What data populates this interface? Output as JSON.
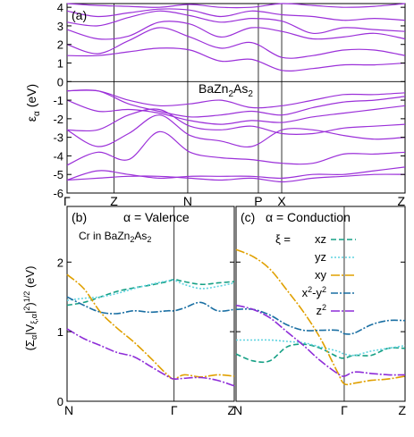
{
  "chart_data": [
    {
      "panel": "(a)",
      "type": "line",
      "annotation": "BaZn2As2",
      "ylabel": "εα (eV)",
      "ylim": [
        -6,
        4.2
      ],
      "yticks": [
        -6,
        -5,
        -4,
        -3,
        -2,
        -1,
        0,
        1,
        2,
        3,
        4
      ],
      "xticks": [
        "Γ",
        "Z",
        "N",
        "P",
        "X",
        "Z"
      ],
      "xtick_pos": [
        0,
        0.139,
        0.357,
        0.566,
        0.635,
        1.0
      ],
      "color": "#9b30d9",
      "bands": [
        [
          4.2,
          4.1,
          4.05,
          4.0,
          4.15,
          4.0,
          4.0,
          4.2,
          4.1,
          4.0,
          4.05,
          4.2
        ],
        [
          3.8,
          3.5,
          3.7,
          3.9,
          3.85,
          3.5,
          3.8,
          3.6,
          3.5,
          3.3,
          3.4,
          3.3
        ],
        [
          3.2,
          3.0,
          3.45,
          3.8,
          3.55,
          3.2,
          3.4,
          3.25,
          2.6,
          2.9,
          2.8,
          2.7
        ],
        [
          2.8,
          2.3,
          2.45,
          3.2,
          3.1,
          2.4,
          2.9,
          2.7,
          2.3,
          2.4,
          2.6,
          2.3
        ],
        [
          2.0,
          1.5,
          2.2,
          2.9,
          2.4,
          1.8,
          2.1,
          1.3,
          1.4,
          1.7,
          1.7,
          1.4
        ],
        [
          1.4,
          1.4,
          1.6,
          1.8,
          1.7,
          1.1,
          1.2,
          0.6,
          0.7,
          0.9,
          0.9,
          1.0
        ],
        [
          -0.5,
          -0.5,
          -1.0,
          -1.3,
          -1.2,
          -1.0,
          -1.4,
          -1.3,
          -1.0,
          -0.7,
          -0.7,
          -0.6
        ],
        [
          -0.5,
          -0.5,
          -1.2,
          -1.6,
          -1.9,
          -1.8,
          -1.6,
          -1.8,
          -1.4,
          -1.1,
          -1.0,
          -0.8
        ],
        [
          -1.0,
          -1.6,
          -1.5,
          -1.7,
          -2.1,
          -2.3,
          -2.1,
          -2.2,
          -1.9,
          -1.7,
          -1.5,
          -1.3
        ],
        [
          -2.6,
          -2.6,
          -1.8,
          -1.5,
          -2.4,
          -2.6,
          -2.4,
          -2.8,
          -2.8,
          -2.5,
          -2.4,
          -2.3
        ],
        [
          -2.6,
          -3.5,
          -2.8,
          -1.8,
          -2.9,
          -3.2,
          -3.5,
          -2.6,
          -2.6,
          -2.9,
          -3.1,
          -3.0
        ],
        [
          -4.5,
          -3.8,
          -4.2,
          -2.7,
          -3.8,
          -4.1,
          -4.2,
          -4.4,
          -4.4,
          -3.9,
          -3.9,
          -3.8
        ],
        [
          -5.3,
          -4.8,
          -5.0,
          -5.2,
          -5.1,
          -5.1,
          -5.1,
          -5.2,
          -5.0,
          -5.0,
          -4.8,
          -4.6
        ],
        [
          -5.3,
          -5.2,
          -5.1,
          -5.1,
          -5.2,
          -5.3,
          -5.2,
          -5.4,
          -5.2,
          -5.1,
          -5.0,
          -5.0
        ]
      ]
    },
    {
      "panel": "(b)",
      "type": "line",
      "title": "α = Valence",
      "annotation": "Cr in BaZn2As2",
      "ylabel": "(Σα|Vξ,α|2)1/2 (eV)",
      "ylim": [
        0,
        2.8
      ],
      "yticks": [
        0,
        1,
        2
      ],
      "xticks": [
        "N",
        "Γ",
        "Z"
      ],
      "xtick_pos": [
        0,
        0.64,
        1.0
      ],
      "x": [
        0,
        0.1,
        0.2,
        0.3,
        0.4,
        0.5,
        0.6,
        0.64,
        0.7,
        0.8,
        0.9,
        1.0
      ],
      "series": [
        {
          "values": [
            1.38,
            1.42,
            1.5,
            1.58,
            1.63,
            1.67,
            1.72,
            1.75,
            1.72,
            1.68,
            1.7,
            1.72
          ]
        },
        {
          "values": [
            1.45,
            1.48,
            1.5,
            1.55,
            1.62,
            1.68,
            1.73,
            1.74,
            1.68,
            1.62,
            1.65,
            1.7
          ]
        },
        {
          "values": [
            1.82,
            1.62,
            1.28,
            1.05,
            0.85,
            0.62,
            0.38,
            0.32,
            0.38,
            0.35,
            0.38,
            0.36
          ]
        },
        {
          "values": [
            1.5,
            1.38,
            1.28,
            1.26,
            1.3,
            1.28,
            1.3,
            1.3,
            1.34,
            1.42,
            1.3,
            1.32
          ]
        },
        {
          "values": [
            1.04,
            0.9,
            0.8,
            0.7,
            0.64,
            0.5,
            0.36,
            0.32,
            0.33,
            0.34,
            0.3,
            0.22
          ]
        }
      ]
    },
    {
      "panel": "(c)",
      "type": "line",
      "title": "α = Conduction",
      "ylim": [
        0,
        2.8
      ],
      "yticks": [
        0,
        1,
        2
      ],
      "xticks": [
        "N",
        "Γ",
        "Z"
      ],
      "xtick_pos": [
        0,
        0.64,
        1.0
      ],
      "x": [
        0,
        0.1,
        0.2,
        0.3,
        0.4,
        0.5,
        0.6,
        0.64,
        0.7,
        0.8,
        0.9,
        1.0
      ],
      "legend_title": "ξ =",
      "series": [
        {
          "name": "xz",
          "values": [
            0.68,
            0.58,
            0.58,
            0.78,
            0.82,
            0.76,
            0.64,
            0.62,
            0.66,
            0.66,
            0.76,
            0.76
          ]
        },
        {
          "name": "yz",
          "values": [
            0.88,
            0.88,
            0.88,
            0.86,
            0.84,
            0.78,
            0.72,
            0.68,
            0.66,
            0.72,
            0.76,
            0.8
          ]
        },
        {
          "name": "xy",
          "values": [
            2.18,
            2.08,
            1.9,
            1.6,
            1.28,
            0.9,
            0.42,
            0.25,
            0.26,
            0.3,
            0.32,
            0.36
          ]
        },
        {
          "name": "x2-y2",
          "values": [
            1.32,
            1.32,
            1.24,
            1.1,
            1.02,
            1.02,
            1.02,
            0.97,
            0.98,
            1.1,
            1.16,
            1.16
          ]
        },
        {
          "name": "z2",
          "values": [
            1.38,
            1.32,
            1.2,
            1.0,
            0.8,
            0.58,
            0.4,
            0.36,
            0.42,
            0.4,
            0.38,
            0.38
          ]
        }
      ],
      "series_colors": [
        "#16a085",
        "#5fd3e0",
        "#e0a000",
        "#1a6fa3",
        "#8e2dd8"
      ],
      "series_dash": [
        "6,3",
        "2,2",
        "10,2,2,2",
        "8,2,2,2",
        "10,2,2,2"
      ]
    }
  ]
}
